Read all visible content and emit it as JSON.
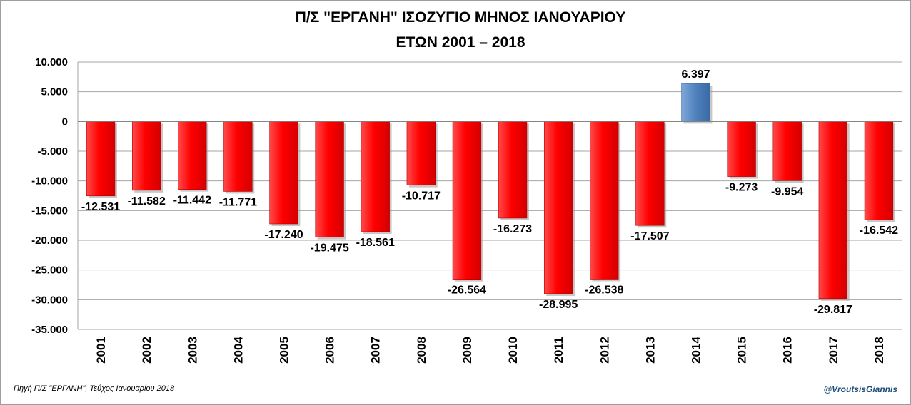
{
  "chart_data": {
    "type": "bar",
    "title_lines": [
      "Π/Σ \"ΕΡΓΑΝΗ\" ΙΣΟΖΥΓΙΟ ΜΗΝΟΣ ΙΑΝΟΥΑΡΙΟΥ",
      "ΕΤΩΝ 2001 – 2018"
    ],
    "categories": [
      "2001",
      "2002",
      "2003",
      "2004",
      "2005",
      "2006",
      "2007",
      "2008",
      "2009",
      "2010",
      "2011",
      "2012",
      "2013",
      "2014",
      "2015",
      "2016",
      "2017",
      "2018"
    ],
    "values": [
      -12531,
      -11582,
      -11442,
      -11771,
      -17240,
      -19475,
      -18561,
      -10717,
      -26564,
      -16273,
      -28995,
      -26538,
      -17507,
      6397,
      -9273,
      -9954,
      -29817,
      -16542
    ],
    "data_labels": [
      "-12.531",
      "-11.582",
      "-11.442",
      "-11.771",
      "-17.240",
      "-19.475",
      "-18.561",
      "-10.717",
      "-26.564",
      "-16.273",
      "-28.995",
      "-26.538",
      "-17.507",
      "6.397",
      "-9.273",
      "-9.954",
      "-29.817",
      "-16.542"
    ],
    "yticks": [
      10000,
      5000,
      0,
      -5000,
      -10000,
      -15000,
      -20000,
      -25000,
      -30000,
      -35000
    ],
    "ytick_labels": [
      "10.000",
      "5.000",
      "0",
      "-5.000",
      "-10.000",
      "-15.000",
      "-20.000",
      "-25.000",
      "-30.000",
      "-35.000"
    ],
    "ylim": [
      -35000,
      10000
    ],
    "xlabel": "",
    "ylabel": "",
    "grid": true,
    "legend": "none",
    "colors": {
      "negative": "#ff0000",
      "positive": "#4f81bd",
      "grid": "#a6a6a6"
    }
  },
  "footer": {
    "source": "Πηγή Π/Σ \"ΕΡΓΑΝΗ\", Τεύχος Ιανουαρίου 2018",
    "handle": "@VroutsisGiannis"
  }
}
